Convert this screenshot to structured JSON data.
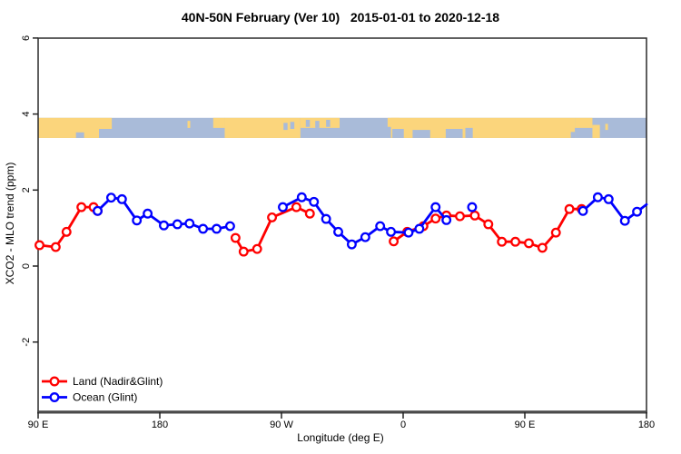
{
  "chart_data": {
    "type": "line",
    "title": "40N-50N February (Ver 10)   2015-01-01 to 2020-12-18",
    "xlabel": "Longitude (deg E)",
    "ylabel": "XCO2 - MLO trend (ppm)",
    "xlim_deg_east": [
      90,
      540
    ],
    "ylim": [
      -3.8,
      6.1
    ],
    "grid": "off",
    "x_ticks": [
      {
        "lon": 90,
        "label": "90 E"
      },
      {
        "lon": 180,
        "label": "180"
      },
      {
        "lon": 270,
        "label": "90 W"
      },
      {
        "lon": 360,
        "label": "0"
      },
      {
        "lon": 450,
        "label": "90 E"
      },
      {
        "lon": 540,
        "label": "180"
      }
    ],
    "y_ticks": [
      {
        "value": 6,
        "label": "6"
      },
      {
        "value": 4,
        "label": "4"
      },
      {
        "value": 2,
        "label": "2"
      },
      {
        "value": 0,
        "label": "0"
      },
      {
        "value": -2,
        "label": "-2"
      }
    ],
    "legend": {
      "position": "bottom-left",
      "items": [
        {
          "label": "Land (Nadir&Glint)",
          "color": "#ff0000"
        },
        {
          "label": "Ocean (Glint)",
          "color": "#0000ff"
        }
      ]
    },
    "series": [
      {
        "name": "Land (Nadir&Glint)",
        "color": "#ff0000",
        "marker": "open-circle",
        "runs": [
          [
            [
              91,
              0.55
            ],
            [
              103,
              0.5
            ],
            [
              111,
              0.9
            ],
            [
              122,
              1.55
            ],
            [
              131,
              1.55
            ],
            [
              134,
              1.45
            ]
          ],
          [
            [
              236,
              0.74
            ],
            [
              242,
              0.38
            ],
            [
              252,
              0.45
            ],
            [
              263,
              1.28
            ],
            [
              281,
              1.55
            ],
            [
              291,
              1.38
            ]
          ],
          [
            [
              353,
              0.65
            ],
            [
              363,
              0.9
            ],
            [
              375,
              1.05
            ],
            [
              384,
              1.25
            ],
            [
              392,
              1.33
            ],
            [
              402,
              1.31
            ],
            [
              413,
              1.33
            ],
            [
              423,
              1.1
            ],
            [
              433,
              0.64
            ],
            [
              443,
              0.64
            ],
            [
              453,
              0.6
            ],
            [
              463,
              0.48
            ],
            [
              473,
              0.88
            ],
            [
              483,
              1.5
            ],
            [
              492,
              1.5
            ]
          ]
        ],
        "isolated_points": []
      },
      {
        "name": "Ocean (Glint)",
        "color": "#0000ff",
        "marker": "open-circle",
        "runs": [
          [
            [
              134,
              1.45
            ],
            [
              144,
              1.8
            ],
            [
              152,
              1.76
            ],
            [
              163,
              1.2
            ],
            [
              171,
              1.38
            ],
            [
              183,
              1.07
            ],
            [
              193,
              1.1
            ],
            [
              202,
              1.12
            ],
            [
              212,
              0.98
            ],
            [
              222,
              0.98
            ],
            [
              232,
              1.05
            ]
          ],
          [
            [
              271,
              1.55
            ],
            [
              285,
              1.81
            ],
            [
              294,
              1.69
            ],
            [
              303,
              1.24
            ],
            [
              312,
              0.9
            ],
            [
              322,
              0.57
            ],
            [
              332,
              0.76
            ],
            [
              343,
              1.05
            ],
            [
              351,
              0.9
            ],
            [
              364,
              0.88
            ],
            [
              372,
              0.98
            ],
            [
              384,
              1.55
            ],
            [
              392,
              1.21
            ]
          ],
          [
            [
              493,
              1.45
            ],
            [
              504,
              1.81
            ],
            [
              512,
              1.76
            ],
            [
              524,
              1.19
            ],
            [
              533,
              1.43
            ],
            [
              540,
              1.62
            ]
          ]
        ],
        "isolated_points": [
          [
            411,
            1.55
          ]
        ]
      }
    ],
    "map_strip": {
      "value_range": [
        3.37,
        3.9
      ],
      "land_color": "#fbd57c",
      "ocean_color": "#a9bbd9",
      "land_patches": [
        {
          "lon": [
            90,
            135
          ],
          "y": [
            0,
            1
          ]
        },
        {
          "lon": [
            135,
            144.5
          ],
          "y": [
            0,
            0.55
          ]
        },
        {
          "lon": [
            200.5,
            202.5
          ],
          "y": [
            0.15,
            0.5
          ]
        },
        {
          "lon": [
            219.5,
            228
          ],
          "y": [
            0,
            0.5
          ]
        },
        {
          "lon": [
            228,
            284
          ],
          "y": [
            0,
            1
          ]
        },
        {
          "lon": [
            284,
            313
          ],
          "y": [
            0,
            0.5
          ]
        },
        {
          "lon": [
            348.5,
            357
          ],
          "y": [
            0,
            0.45
          ]
        },
        {
          "lon": [
            351,
            487
          ],
          "y": [
            0,
            1
          ]
        },
        {
          "lon": [
            487,
            500
          ],
          "y": [
            0,
            0.5
          ]
        },
        {
          "lon": [
            500,
            505.5
          ],
          "y": [
            0.35,
            1
          ]
        },
        {
          "lon": [
            509.5,
            511.5
          ],
          "y": [
            0.3,
            0.6
          ]
        }
      ],
      "ocean_patches": [
        {
          "lon": [
            118,
            124
          ],
          "y": [
            0.72,
            1
          ]
        },
        {
          "lon": [
            271.5,
            274.5
          ],
          "y": [
            0.25,
            0.6
          ]
        },
        {
          "lon": [
            276.5,
            279.5
          ],
          "y": [
            0.2,
            0.55
          ]
        },
        {
          "lon": [
            288,
            291
          ],
          "y": [
            0.1,
            0.45
          ]
        },
        {
          "lon": [
            295,
            298
          ],
          "y": [
            0.15,
            0.5
          ]
        },
        {
          "lon": [
            303,
            306
          ],
          "y": [
            0.1,
            0.45
          ]
        },
        {
          "lon": [
            352,
            360.5
          ],
          "y": [
            0.55,
            1
          ]
        },
        {
          "lon": [
            367,
            380
          ],
          "y": [
            0.6,
            1
          ]
        },
        {
          "lon": [
            391.5,
            404
          ],
          "y": [
            0.55,
            1
          ]
        },
        {
          "lon": [
            406,
            411.5
          ],
          "y": [
            0.5,
            1
          ]
        },
        {
          "lon": [
            484,
            487
          ],
          "y": [
            0.7,
            1
          ]
        }
      ]
    }
  }
}
